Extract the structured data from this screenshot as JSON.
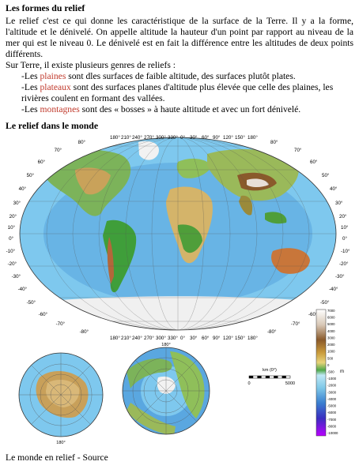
{
  "section1": {
    "title": "Les formes du relief",
    "p1": "Le relief c'est ce qui donne les caractéristique de la surface de la Terre. Il y a la forme, l'altitude et le dénivelé. On appelle altitude la hauteur d'un point par rapport au niveau de la mer qui est le niveau 0. Le dénivelé est en fait la différence entre les altitudes de deux points différents.",
    "p2": "Sur Terre, il existe plusieurs genres de reliefs :",
    "items": [
      {
        "prefix": "-Les ",
        "term": "plaines",
        "rest": " sont dles surfaces de faible altitude, des surfaces plutôt plates."
      },
      {
        "prefix": "-Les ",
        "term": "plateaux",
        "rest": " sont des surfaces planes d'altitude plus élevée que celle des plaines, les rivières coulent en formant des vallées."
      },
      {
        "prefix": "-Les ",
        "term": "montagnes",
        "rest": " sont des « bosses » à haute altitude et avec un fort dénivelé."
      }
    ]
  },
  "section2": {
    "title": "Le relief dans le monde"
  },
  "map": {
    "top_lons": [
      "180°",
      "210°",
      "240°",
      "270°",
      "300°",
      "330°",
      "0°",
      "30°",
      "60°",
      "90°",
      "120°",
      "150°",
      "180°"
    ],
    "bottom_lons": [
      "180°",
      "210°",
      "240°",
      "270°",
      "300°",
      "330°",
      "0°",
      "30°",
      "60°",
      "90°",
      "120°",
      "150°",
      "180°"
    ],
    "left_lats": [
      "80°",
      "70°",
      "60°",
      "50°",
      "40°",
      "30°",
      "20°",
      "10°",
      "0°",
      "-10°",
      "-20°",
      "-30°",
      "-40°",
      "-50°",
      "-60°",
      "-70°",
      "-80°"
    ],
    "right_lats": [
      "80°",
      "70°",
      "60°",
      "50°",
      "40°",
      "30°",
      "20°",
      "10°",
      "0°",
      "-10°",
      "-20°",
      "-30°",
      "-40°",
      "-50°",
      "-60°",
      "-70°",
      "-80°"
    ],
    "pole_top_label": "180°",
    "pole_bottom_label": "180°",
    "scale_title": "km (0°)",
    "scale_min": "0",
    "scale_max": "5000",
    "legend_unit": "m",
    "legend_values": [
      "7000",
      "6000",
      "5000",
      "4000",
      "3000",
      "2000",
      "1000",
      "500",
      "0",
      "-500",
      "-1000",
      "-2000",
      "-3000",
      "-4000",
      "-5000",
      "-6000",
      "-7000",
      "-8000",
      "-10000"
    ]
  },
  "caption": "Le monde en relief - Source"
}
